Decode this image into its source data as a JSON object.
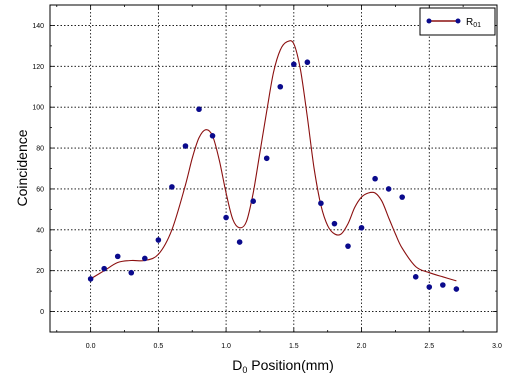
{
  "chart_data": {
    "type": "scatter",
    "xlabel_main": "D",
    "xlabel_sub": "0",
    "xlabel_rest": " Position(mm)",
    "ylabel": "Coincidence",
    "xlim": [
      -0.3,
      3.0
    ],
    "ylim": [
      -10,
      150
    ],
    "x_ticks": [
      "0.0",
      "0.5",
      "1.0",
      "1.5",
      "2.0",
      "2.5",
      "3.0"
    ],
    "y_ticks": [
      "0",
      "20",
      "40",
      "60",
      "80",
      "100",
      "120",
      "140"
    ],
    "grid": true,
    "legend": {
      "position": "top-right",
      "label_main": "R",
      "label_sub": "01"
    },
    "points": {
      "x": [
        0.0,
        0.1,
        0.2,
        0.3,
        0.4,
        0.5,
        0.6,
        0.7,
        0.8,
        0.9,
        1.0,
        1.1,
        1.2,
        1.3,
        1.4,
        1.5,
        1.6,
        1.7,
        1.8,
        1.9,
        2.0,
        2.1,
        2.2,
        2.3,
        2.4,
        2.5,
        2.6,
        2.7
      ],
      "y": [
        16,
        21,
        27,
        19,
        26,
        35,
        61,
        81,
        99,
        86,
        46,
        34,
        54,
        75,
        110,
        121,
        122,
        53,
        43,
        32,
        41,
        65,
        60,
        56,
        17,
        12,
        13,
        11
      ]
    },
    "fit_curve": {
      "x": [
        0.0,
        0.1,
        0.2,
        0.3,
        0.4,
        0.5,
        0.6,
        0.7,
        0.75,
        0.8,
        0.85,
        0.9,
        0.95,
        1.0,
        1.05,
        1.1,
        1.15,
        1.2,
        1.25,
        1.3,
        1.35,
        1.4,
        1.45,
        1.5,
        1.55,
        1.6,
        1.65,
        1.7,
        1.75,
        1.8,
        1.85,
        1.9,
        1.95,
        2.0,
        2.05,
        2.1,
        2.15,
        2.2,
        2.25,
        2.3,
        2.4,
        2.5,
        2.6,
        2.7
      ],
      "y": [
        16,
        20,
        24,
        25,
        25,
        28,
        40,
        62,
        75,
        85,
        89,
        86,
        74,
        58,
        45,
        41,
        44,
        58,
        78,
        98,
        117,
        128,
        132,
        131,
        118,
        95,
        70,
        52,
        42,
        38,
        38,
        43,
        51,
        56,
        58,
        58,
        54,
        46,
        38,
        31,
        22,
        19,
        17,
        15
      ]
    }
  }
}
